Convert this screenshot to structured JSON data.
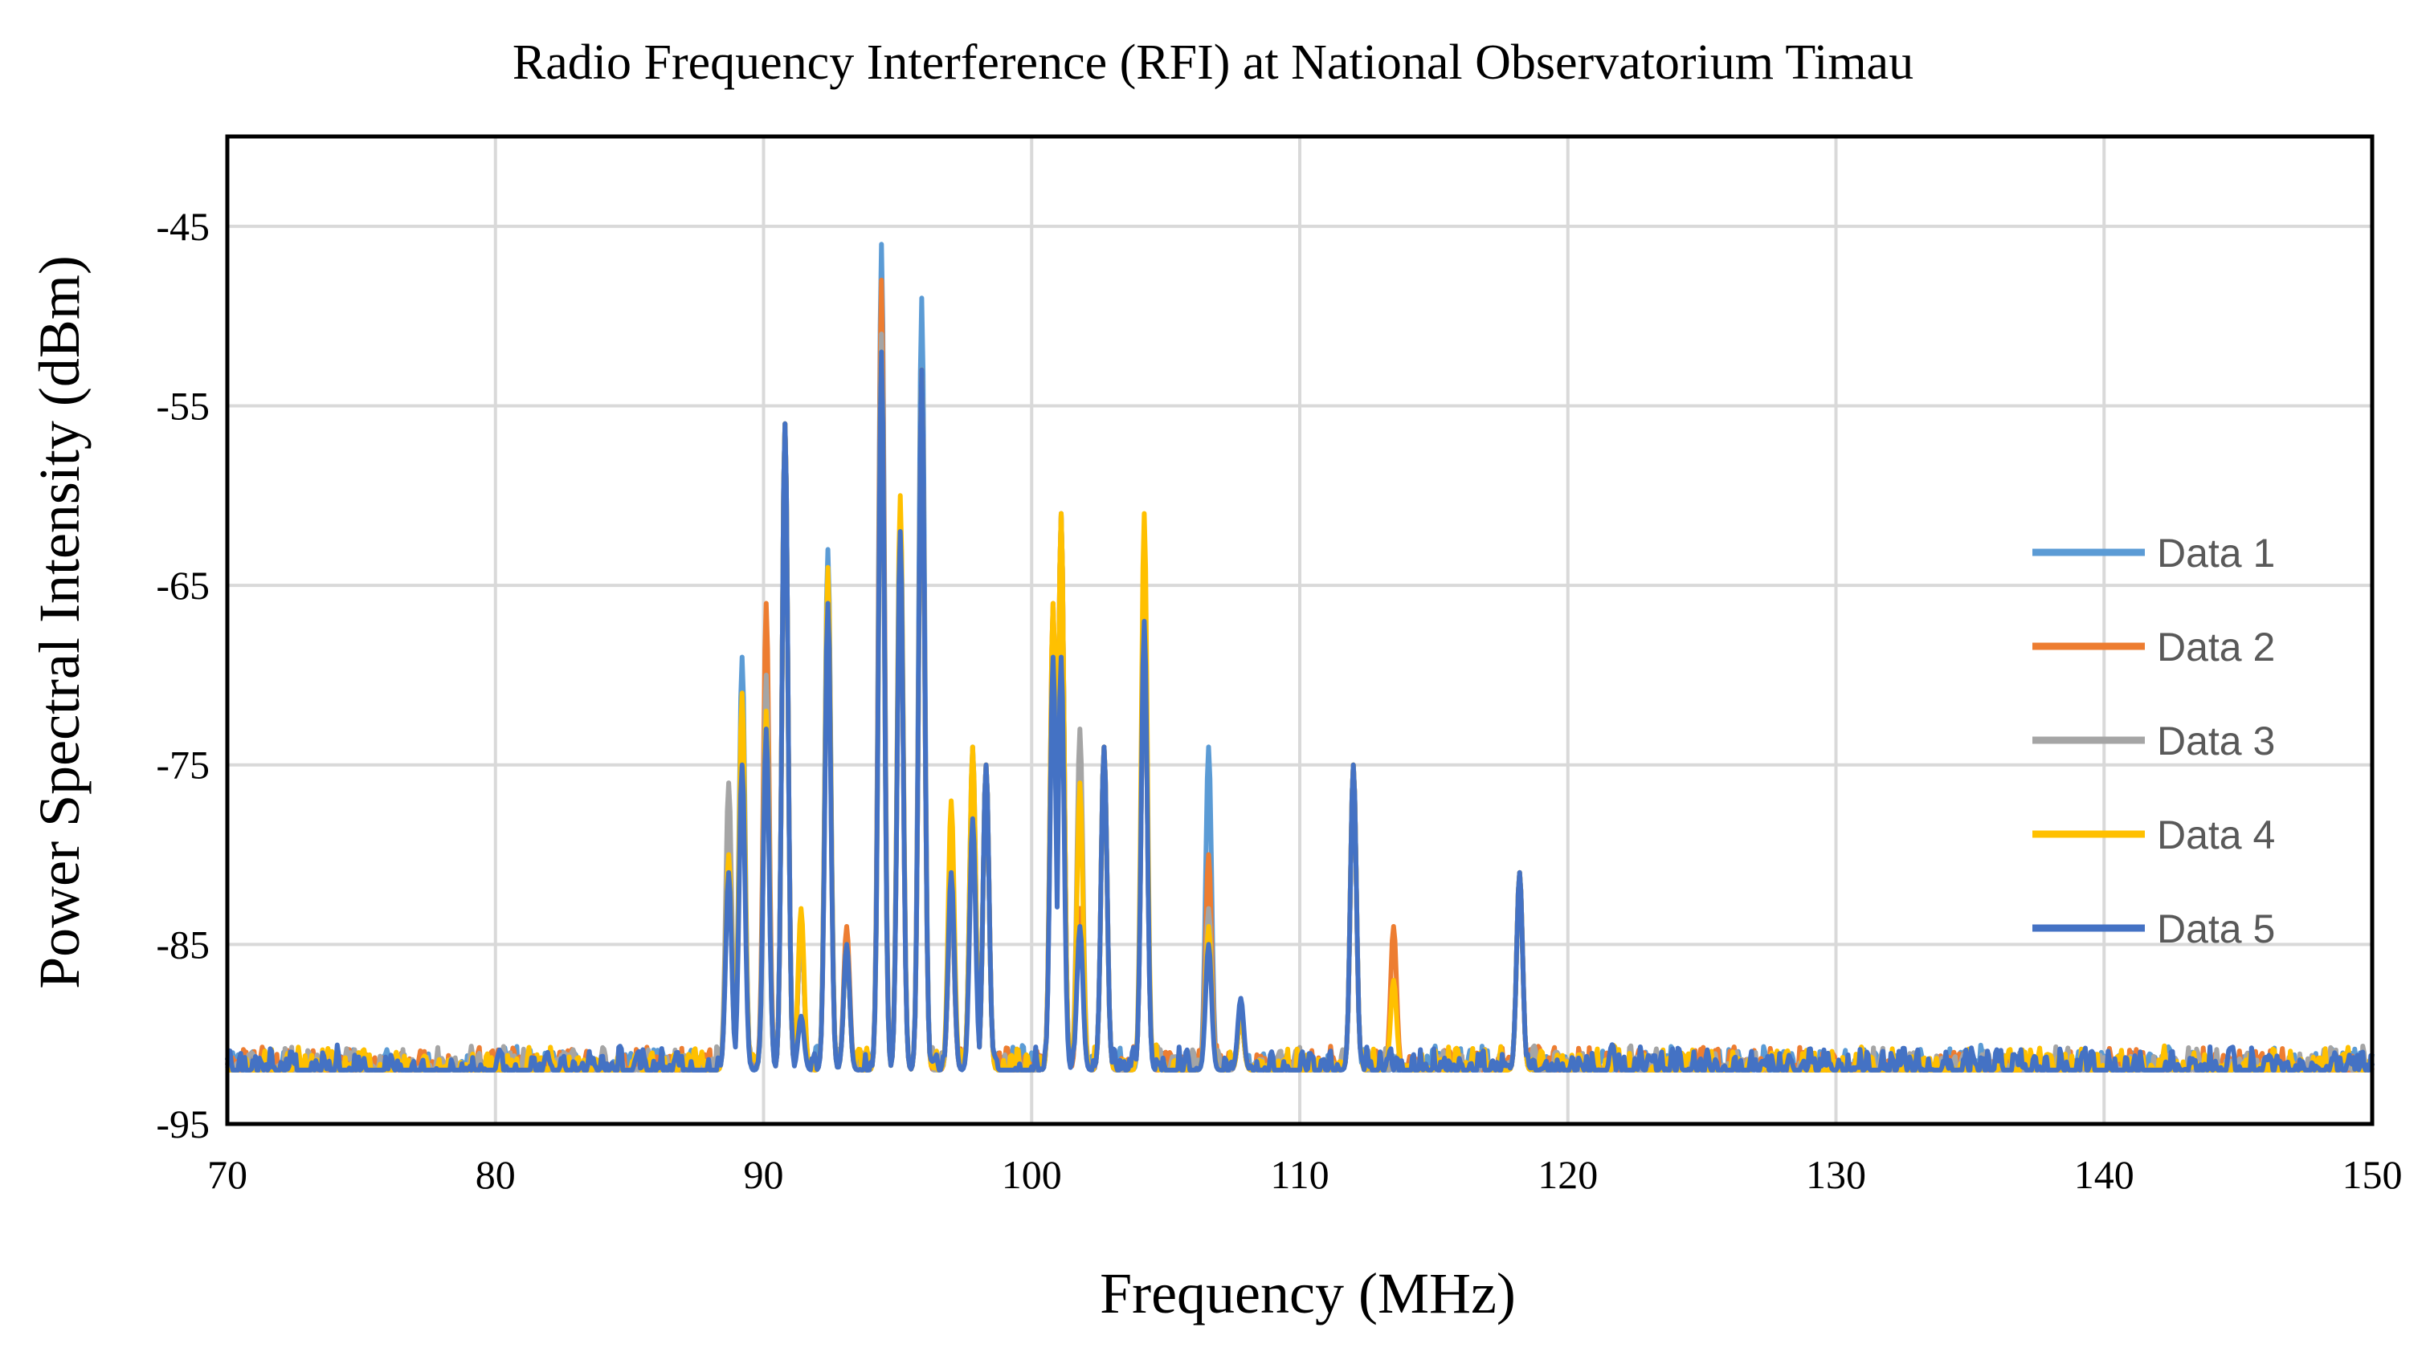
{
  "chart_data": {
    "type": "line",
    "title": "Radio Frequency Interference (RFI) at National Observatorium  Timau",
    "xlabel": "Frequency (MHz)",
    "ylabel": "Power Spectral Intensity (dBm)",
    "xlim": [
      70,
      150
    ],
    "ylim": [
      -95,
      -40
    ],
    "xticks": [
      70,
      80,
      90,
      100,
      110,
      120,
      130,
      140,
      150
    ],
    "xtick_labels": [
      "70",
      "80",
      "90",
      "100",
      "110",
      "120",
      "130",
      "140",
      "150"
    ],
    "yticks": [
      -45,
      -55,
      -65,
      -75,
      -85,
      -95
    ],
    "ytick_labels": [
      "-45",
      "-55",
      "-65",
      "-75",
      "-85",
      "-95"
    ],
    "grid": true,
    "legend_position": "right",
    "noise_floor": -92,
    "noise_amplitude": 1.2,
    "sample_step": 0.05,
    "peak_width": 0.22,
    "series": [
      {
        "name": "Data 1",
        "color": "#5b9bd5",
        "peaks": [
          [
            88.7,
            -80
          ],
          [
            89.2,
            -69
          ],
          [
            90.1,
            -73
          ],
          [
            90.8,
            -56
          ],
          [
            91.4,
            -84
          ],
          [
            92.4,
            -63
          ],
          [
            93.1,
            -85
          ],
          [
            94.4,
            -46
          ],
          [
            95.1,
            -62
          ],
          [
            95.9,
            -49
          ],
          [
            97,
            -82
          ],
          [
            97.8,
            -74
          ],
          [
            98.3,
            -75
          ],
          [
            100.8,
            -68
          ],
          [
            101.1,
            -61
          ],
          [
            101.8,
            -83
          ],
          [
            102.7,
            -74
          ],
          [
            104.2,
            -67
          ],
          [
            106.6,
            -74
          ],
          [
            107.8,
            -89
          ],
          [
            112,
            -75
          ],
          [
            118.2,
            -81
          ]
        ]
      },
      {
        "name": "Data 2",
        "color": "#ed7d31",
        "peaks": [
          [
            88.7,
            -80
          ],
          [
            89.2,
            -72
          ],
          [
            90.1,
            -66
          ],
          [
            90.8,
            -56
          ],
          [
            91.4,
            -84
          ],
          [
            92.4,
            -65
          ],
          [
            93.1,
            -84
          ],
          [
            94.4,
            -48
          ],
          [
            95.1,
            -62
          ],
          [
            95.9,
            -53
          ],
          [
            97,
            -82
          ],
          [
            97.8,
            -75
          ],
          [
            98.3,
            -75
          ],
          [
            100.8,
            -66
          ],
          [
            101.1,
            -61
          ],
          [
            101.8,
            -83
          ],
          [
            102.7,
            -74
          ],
          [
            104.2,
            -67
          ],
          [
            106.6,
            -80
          ],
          [
            107.8,
            -89
          ],
          [
            112,
            -75
          ],
          [
            113.5,
            -84
          ],
          [
            118.2,
            -81
          ]
        ]
      },
      {
        "name": "Data 3",
        "color": "#a5a5a5",
        "peaks": [
          [
            88.7,
            -76
          ],
          [
            89.2,
            -72
          ],
          [
            90.1,
            -70
          ],
          [
            90.8,
            -56
          ],
          [
            91.4,
            -84
          ],
          [
            92.4,
            -65
          ],
          [
            93.1,
            -85
          ],
          [
            94.4,
            -51
          ],
          [
            95.1,
            -61
          ],
          [
            95.9,
            -53
          ],
          [
            97,
            -82
          ],
          [
            97.8,
            -75
          ],
          [
            98.3,
            -75
          ],
          [
            100.8,
            -68
          ],
          [
            101.1,
            -61
          ],
          [
            101.8,
            -73
          ],
          [
            102.7,
            -74
          ],
          [
            104.2,
            -67
          ],
          [
            106.6,
            -83
          ],
          [
            107.8,
            -89
          ],
          [
            112,
            -75
          ],
          [
            118.2,
            -81
          ]
        ]
      },
      {
        "name": "Data 4",
        "color": "#ffc000",
        "peaks": [
          [
            88.7,
            -80
          ],
          [
            89.2,
            -71
          ],
          [
            90.1,
            -72
          ],
          [
            90.8,
            -56
          ],
          [
            91.4,
            -83
          ],
          [
            92.4,
            -64
          ],
          [
            93.1,
            -85
          ],
          [
            94.4,
            -52
          ],
          [
            95.1,
            -60
          ],
          [
            95.9,
            -53
          ],
          [
            97,
            -77
          ],
          [
            97.8,
            -74
          ],
          [
            98.3,
            -75
          ],
          [
            100.8,
            -66
          ],
          [
            101.1,
            -61
          ],
          [
            101.8,
            -76
          ],
          [
            102.7,
            -74
          ],
          [
            104.2,
            -61
          ],
          [
            106.6,
            -84
          ],
          [
            107.8,
            -89
          ],
          [
            112,
            -75
          ],
          [
            113.5,
            -87
          ],
          [
            118.2,
            -81
          ]
        ]
      },
      {
        "name": "Data 5",
        "color": "#4472c4",
        "peaks": [
          [
            88.7,
            -81
          ],
          [
            89.2,
            -75
          ],
          [
            90.1,
            -73
          ],
          [
            90.8,
            -56
          ],
          [
            91.4,
            -89
          ],
          [
            92.4,
            -66
          ],
          [
            93.1,
            -85
          ],
          [
            94.4,
            -52
          ],
          [
            95.1,
            -62
          ],
          [
            95.9,
            -53
          ],
          [
            97,
            -81
          ],
          [
            97.8,
            -78
          ],
          [
            98.3,
            -75
          ],
          [
            100.8,
            -69
          ],
          [
            101.1,
            -69
          ],
          [
            101.8,
            -84
          ],
          [
            102.7,
            -74
          ],
          [
            104.2,
            -67
          ],
          [
            106.6,
            -85
          ],
          [
            107.8,
            -88
          ],
          [
            112,
            -75
          ],
          [
            118.2,
            -81
          ]
        ]
      }
    ]
  }
}
